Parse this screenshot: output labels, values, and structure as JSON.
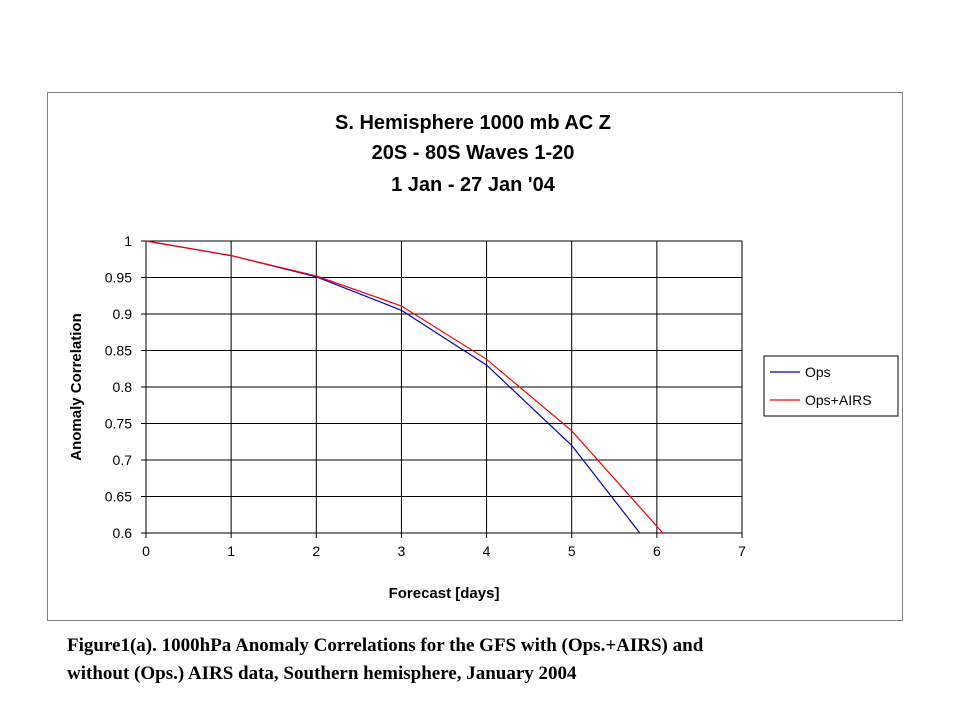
{
  "caption": {
    "line1": "Figure1(a). 1000hPa Anomaly Correlations for the GFS with (Ops.+AIRS) and",
    "line2": "without (Ops.) AIRS data, Southern hemisphere, January 2004"
  },
  "chart_data": {
    "type": "line",
    "title": [
      "S. Hemisphere 1000 mb AC Z",
      "20S - 80S Waves 1-20",
      "1 Jan - 27 Jan '04"
    ],
    "xlabel": "Forecast [days]",
    "ylabel": "Anomaly Correlation",
    "xlim": [
      0,
      7
    ],
    "ylim": [
      0.6,
      1
    ],
    "xticks": [
      "0",
      "1",
      "2",
      "3",
      "4",
      "5",
      "6",
      "7"
    ],
    "yticks": [
      "1",
      "0.95",
      "0.9",
      "0.85",
      "0.8",
      "0.75",
      "0.7",
      "0.65",
      "0.6"
    ],
    "grid": true,
    "legend_position": "right",
    "series": [
      {
        "name": "Ops",
        "color": "#0000cc",
        "x": [
          0,
          1,
          2,
          3,
          4,
          5,
          5.8
        ],
        "y": [
          1.0,
          0.98,
          0.951,
          0.905,
          0.83,
          0.72,
          0.6
        ]
      },
      {
        "name": "Ops+AIRS",
        "color": "#ff0000",
        "x": [
          0,
          1,
          2,
          3,
          4,
          5,
          6.07
        ],
        "y": [
          1.0,
          0.98,
          0.952,
          0.911,
          0.838,
          0.74,
          0.6
        ]
      }
    ]
  }
}
